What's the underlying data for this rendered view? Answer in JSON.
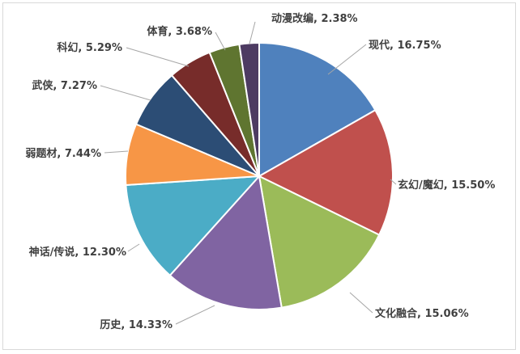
{
  "chart_data": {
    "type": "pie",
    "title": "",
    "start_angle": "12 o'clock",
    "direction": "clockwise",
    "legend": "none",
    "slices": [
      {
        "label": "现代",
        "value": 16.75,
        "display": "现代, 16.75%",
        "color": "#4f81bd"
      },
      {
        "label": "玄幻/魔幻",
        "value": 15.5,
        "display": "玄幻/魔幻, 15.50%",
        "color": "#c0504d"
      },
      {
        "label": "文化融合",
        "value": 15.06,
        "display": "文化融合, 15.06%",
        "color": "#9bbb59"
      },
      {
        "label": "历史",
        "value": 14.33,
        "display": "历史, 14.33%",
        "color": "#8064a2"
      },
      {
        "label": "神话/传说",
        "value": 12.3,
        "display": "神话/传说, 12.30%",
        "color": "#4bacc6"
      },
      {
        "label": "弱题材",
        "value": 7.44,
        "display": "弱题材, 7.44%",
        "color": "#f79646"
      },
      {
        "label": "武侠",
        "value": 7.27,
        "display": "武侠, 7.27%",
        "color": "#2c4d75"
      },
      {
        "label": "科幻",
        "value": 5.29,
        "display": "科幻, 5.29%",
        "color": "#772c2a"
      },
      {
        "label": "体育",
        "value": 3.68,
        "display": "体育, 3.68%",
        "color": "#5f7530"
      },
      {
        "label": "动漫改编",
        "value": 2.38,
        "display": "动漫改编, 2.38%",
        "color": "#4d3b62"
      }
    ]
  }
}
